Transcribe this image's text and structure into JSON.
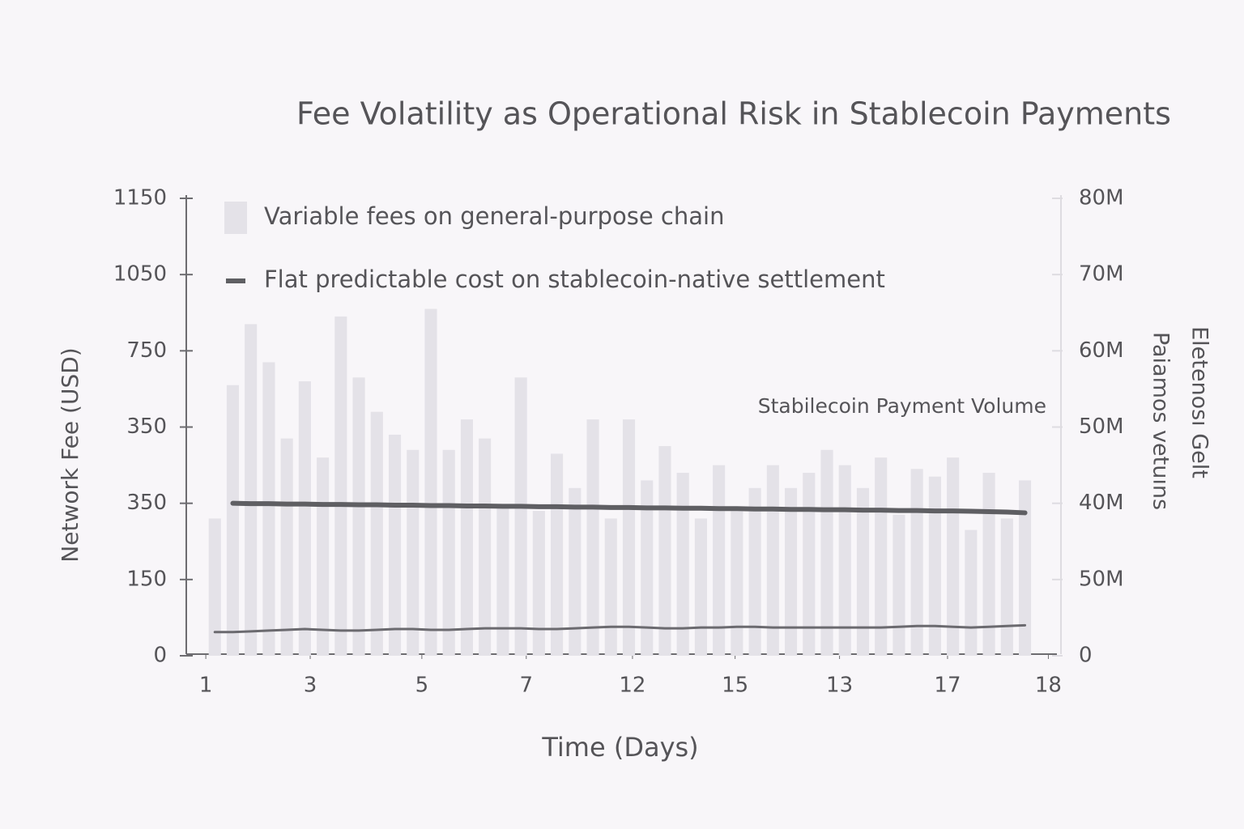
{
  "chart_data": {
    "type": "bar",
    "title": "Fee Volatility as Operational Risk in Stablecoin Payments",
    "xlabel": "Time (Days)",
    "ylabel": "Network Fee (USD)",
    "y2_labels": [
      "Paiamos vetuıns",
      "Eletenosı Gelt"
    ],
    "annotation": "Stabilecoin Payment Volume",
    "x": [
      1,
      2,
      3,
      4,
      5,
      6,
      7,
      8,
      9,
      10,
      11,
      12,
      13,
      14,
      15,
      16,
      17,
      18,
      19,
      20,
      21,
      22,
      23,
      24,
      25,
      26,
      27,
      28,
      29,
      30,
      31,
      32,
      33,
      34,
      35,
      36,
      37,
      38,
      39,
      40,
      41,
      42,
      43,
      44,
      45,
      46
    ],
    "xlim": [
      0,
      48
    ],
    "xticks": [
      {
        "value": 0.5,
        "label": "1"
      },
      {
        "value": 6.3,
        "label": "3"
      },
      {
        "value": 12.5,
        "label": "5"
      },
      {
        "value": 18.3,
        "label": "7"
      },
      {
        "value": 24.2,
        "label": "12"
      },
      {
        "value": 29.9,
        "label": "15"
      },
      {
        "value": 35.7,
        "label": "13"
      },
      {
        "value": 41.7,
        "label": "17"
      },
      {
        "value": 47.3,
        "label": "18"
      }
    ],
    "ylim": [
      0,
      1200
    ],
    "yticks": [
      0,
      {
        "value": 200,
        "label": "150"
      },
      {
        "value": 400,
        "label": "350"
      },
      {
        "value": 600,
        "label": "350"
      },
      {
        "value": 800,
        "label": "750"
      },
      {
        "value": 1000,
        "label": "1050"
      },
      {
        "value": 1200,
        "label": "1150"
      }
    ],
    "y2lim": [
      0,
      60000000
    ],
    "y2ticks": [
      0,
      {
        "value": 10000000,
        "label": "50M"
      },
      {
        "value": 20000000,
        "label": "40M"
      },
      {
        "value": 30000000,
        "label": "50M"
      },
      {
        "value": 40000000,
        "label": "60M"
      },
      {
        "value": 50000000,
        "label": "70M"
      },
      {
        "value": 60000000,
        "label": "80M"
      }
    ],
    "series": [
      {
        "name": "Variable fees on general-purpose chain",
        "type": "bar",
        "color": "#e4e2e8",
        "values": [
          360,
          710,
          870,
          770,
          570,
          720,
          520,
          890,
          730,
          640,
          580,
          540,
          910,
          540,
          620,
          570,
          390,
          730,
          380,
          530,
          440,
          620,
          360,
          620,
          460,
          550,
          480,
          360,
          500,
          390,
          440,
          500,
          440,
          480,
          540,
          500,
          440,
          520,
          370,
          490,
          470,
          520,
          330,
          480,
          360,
          460
        ]
      },
      {
        "name": "Flat predictable cost on stablecoin-native settlement",
        "type": "line",
        "color": "#5f5f63",
        "values": [
          null,
          400,
          399,
          399,
          398,
          398,
          397,
          397,
          396,
          396,
          395,
          395,
          394,
          394,
          393,
          393,
          392,
          392,
          391,
          391,
          390,
          390,
          389,
          389,
          388,
          388,
          387,
          387,
          386,
          386,
          385,
          385,
          384,
          384,
          383,
          383,
          382,
          382,
          381,
          381,
          380,
          380,
          379,
          378,
          377,
          375
        ]
      },
      {
        "type": "line",
        "axis": "y2",
        "color": "#6b6a6f",
        "values": [
          3100000,
          3100000,
          3200000,
          3300000,
          3400000,
          3500000,
          3400000,
          3300000,
          3300000,
          3400000,
          3500000,
          3500000,
          3400000,
          3400000,
          3500000,
          3600000,
          3600000,
          3600000,
          3500000,
          3500000,
          3600000,
          3700000,
          3800000,
          3800000,
          3700000,
          3600000,
          3600000,
          3700000,
          3700000,
          3800000,
          3800000,
          3700000,
          3700000,
          3700000,
          3700000,
          3700000,
          3700000,
          3700000,
          3800000,
          3900000,
          3900000,
          3800000,
          3700000,
          3800000,
          3900000,
          4000000
        ]
      }
    ]
  }
}
